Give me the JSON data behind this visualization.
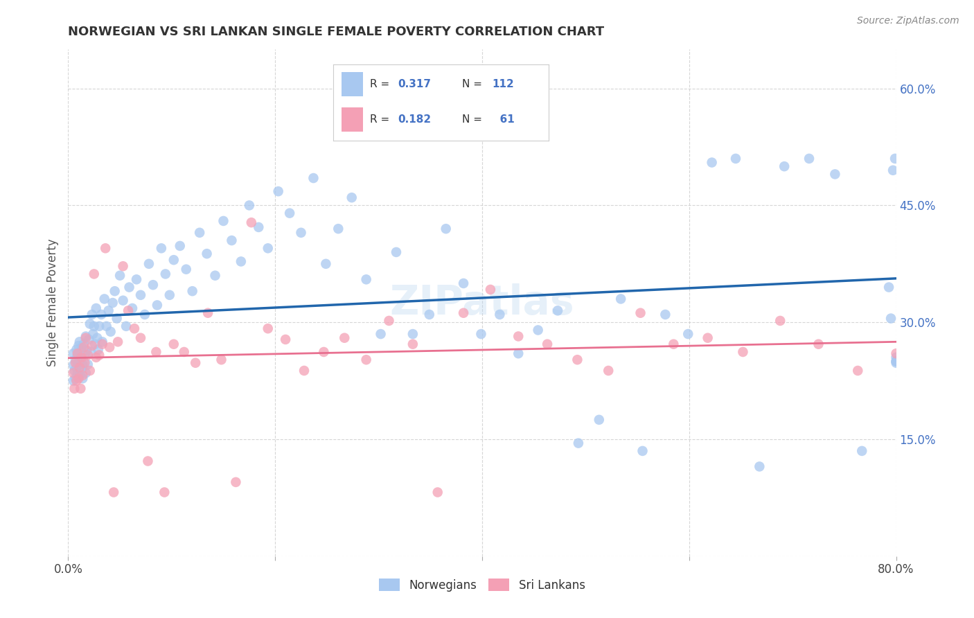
{
  "title": "NORWEGIAN VS SRI LANKAN SINGLE FEMALE POVERTY CORRELATION CHART",
  "source": "Source: ZipAtlas.com",
  "ylabel": "Single Female Poverty",
  "x_min": 0.0,
  "x_max": 0.8,
  "y_min": 0.0,
  "y_max": 0.65,
  "norwegian_color": "#a8c8f0",
  "sri_lankan_color": "#f4a0b5",
  "trend_norwegian_color": "#2166ac",
  "trend_sri_lankan_color": "#e87090",
  "legend_R_norwegian": "0.317",
  "legend_N_norwegian": "112",
  "legend_R_sri_lankan": "0.182",
  "legend_N_sri_lankan": "61",
  "background_color": "#ffffff",
  "grid_color": "#cccccc",
  "watermark": "ZIPatlas",
  "norwegian_x": [
    0.005,
    0.005,
    0.005,
    0.006,
    0.007,
    0.007,
    0.008,
    0.008,
    0.009,
    0.009,
    0.01,
    0.01,
    0.011,
    0.011,
    0.012,
    0.013,
    0.013,
    0.014,
    0.014,
    0.015,
    0.016,
    0.017,
    0.017,
    0.018,
    0.019,
    0.02,
    0.021,
    0.022,
    0.023,
    0.024,
    0.025,
    0.026,
    0.027,
    0.028,
    0.029,
    0.03,
    0.032,
    0.033,
    0.035,
    0.037,
    0.039,
    0.041,
    0.043,
    0.045,
    0.047,
    0.05,
    0.053,
    0.056,
    0.059,
    0.062,
    0.066,
    0.07,
    0.074,
    0.078,
    0.082,
    0.086,
    0.09,
    0.094,
    0.098,
    0.102,
    0.108,
    0.114,
    0.12,
    0.127,
    0.134,
    0.142,
    0.15,
    0.158,
    0.167,
    0.175,
    0.184,
    0.193,
    0.203,
    0.214,
    0.225,
    0.237,
    0.249,
    0.261,
    0.274,
    0.288,
    0.302,
    0.317,
    0.333,
    0.349,
    0.365,
    0.382,
    0.399,
    0.417,
    0.435,
    0.454,
    0.473,
    0.493,
    0.513,
    0.534,
    0.555,
    0.577,
    0.599,
    0.622,
    0.645,
    0.668,
    0.692,
    0.716,
    0.741,
    0.767,
    0.793,
    0.795,
    0.797,
    0.799,
    0.8,
    0.8,
    0.8,
    0.8
  ],
  "norwegian_y": [
    0.245,
    0.26,
    0.225,
    0.238,
    0.252,
    0.228,
    0.265,
    0.242,
    0.258,
    0.235,
    0.27,
    0.248,
    0.232,
    0.275,
    0.255,
    0.24,
    0.268,
    0.246,
    0.228,
    0.272,
    0.258,
    0.235,
    0.282,
    0.264,
    0.246,
    0.278,
    0.298,
    0.262,
    0.31,
    0.285,
    0.295,
    0.272,
    0.318,
    0.28,
    0.265,
    0.295,
    0.31,
    0.275,
    0.33,
    0.295,
    0.315,
    0.288,
    0.325,
    0.34,
    0.305,
    0.36,
    0.328,
    0.295,
    0.345,
    0.318,
    0.355,
    0.335,
    0.31,
    0.375,
    0.348,
    0.322,
    0.395,
    0.362,
    0.335,
    0.38,
    0.398,
    0.368,
    0.34,
    0.415,
    0.388,
    0.36,
    0.43,
    0.405,
    0.378,
    0.45,
    0.422,
    0.395,
    0.468,
    0.44,
    0.415,
    0.485,
    0.375,
    0.42,
    0.46,
    0.355,
    0.285,
    0.39,
    0.285,
    0.31,
    0.42,
    0.35,
    0.285,
    0.31,
    0.26,
    0.29,
    0.315,
    0.145,
    0.175,
    0.33,
    0.135,
    0.31,
    0.285,
    0.505,
    0.51,
    0.115,
    0.5,
    0.51,
    0.49,
    0.135,
    0.345,
    0.305,
    0.495,
    0.51,
    0.25,
    0.255,
    0.25,
    0.248
  ],
  "sri_lankan_x": [
    0.005,
    0.006,
    0.007,
    0.008,
    0.009,
    0.01,
    0.011,
    0.012,
    0.013,
    0.014,
    0.015,
    0.016,
    0.017,
    0.019,
    0.021,
    0.023,
    0.025,
    0.027,
    0.03,
    0.033,
    0.036,
    0.04,
    0.044,
    0.048,
    0.053,
    0.058,
    0.064,
    0.07,
    0.077,
    0.085,
    0.093,
    0.102,
    0.112,
    0.123,
    0.135,
    0.148,
    0.162,
    0.177,
    0.193,
    0.21,
    0.228,
    0.247,
    0.267,
    0.288,
    0.31,
    0.333,
    0.357,
    0.382,
    0.408,
    0.435,
    0.463,
    0.492,
    0.522,
    0.553,
    0.585,
    0.618,
    0.652,
    0.688,
    0.725,
    0.763,
    0.8
  ],
  "sri_lankan_y": [
    0.235,
    0.215,
    0.248,
    0.225,
    0.26,
    0.228,
    0.242,
    0.215,
    0.255,
    0.232,
    0.268,
    0.248,
    0.28,
    0.258,
    0.238,
    0.27,
    0.362,
    0.255,
    0.258,
    0.272,
    0.395,
    0.268,
    0.082,
    0.275,
    0.372,
    0.315,
    0.292,
    0.28,
    0.122,
    0.262,
    0.082,
    0.272,
    0.262,
    0.248,
    0.312,
    0.252,
    0.095,
    0.428,
    0.292,
    0.278,
    0.238,
    0.262,
    0.28,
    0.252,
    0.302,
    0.272,
    0.082,
    0.312,
    0.342,
    0.282,
    0.272,
    0.252,
    0.238,
    0.312,
    0.272,
    0.28,
    0.262,
    0.302,
    0.272,
    0.238,
    0.26
  ]
}
